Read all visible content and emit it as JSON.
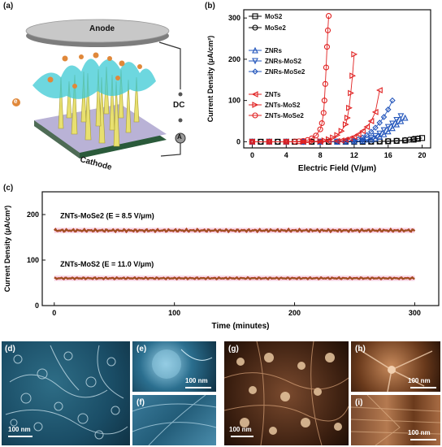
{
  "panel_a": {
    "label": "(a)",
    "anode": "Anode",
    "cathode": "Cathode",
    "dc": "DC",
    "ammeter": "A",
    "electron": "e"
  },
  "panel_b": {
    "label": "(b)",
    "chart_data": {
      "type": "scatter",
      "xlabel": "Electric Field (V/μm)",
      "ylabel": "Current Density (μA/cm²)",
      "xlim": [
        -1,
        21
      ],
      "ylim": [
        -15,
        320
      ],
      "xticks": [
        "0",
        "4",
        "8",
        "12",
        "16",
        "20"
      ],
      "yticks": [
        "0",
        "100",
        "200",
        "300"
      ],
      "legend_position": "top-left",
      "series": [
        {
          "name": "MoS2",
          "color": "#000000",
          "marker": "square",
          "x": [
            0,
            1,
            2,
            3,
            4,
            5,
            6,
            7,
            8,
            9,
            10,
            11,
            12,
            13,
            14,
            15,
            16,
            17,
            18,
            19,
            19.5,
            20
          ],
          "y": [
            0,
            0,
            0,
            0,
            0,
            0,
            0,
            0,
            0,
            0,
            0,
            0,
            0,
            0,
            0.2,
            0.5,
            1,
            2,
            3,
            5,
            7,
            9
          ]
        },
        {
          "name": "MoSe2",
          "color": "#000000",
          "marker": "circle",
          "x": [
            0,
            1,
            2,
            3,
            4,
            5,
            6,
            7,
            8,
            9,
            10,
            11,
            12,
            13,
            14,
            15,
            16,
            17,
            18,
            18.5,
            19,
            19.5
          ],
          "y": [
            0,
            0,
            0,
            0,
            0,
            0,
            0,
            0,
            0,
            0,
            0,
            0,
            0,
            0.2,
            0.5,
            1,
            1.5,
            2.5,
            4,
            5,
            7,
            8
          ]
        },
        {
          "name": "ZNRs",
          "color": "#2255bb",
          "marker": "triangle-up",
          "x": [
            0,
            2,
            4,
            6,
            8,
            10,
            11,
            12,
            13,
            14,
            14.5,
            15,
            15.5,
            16,
            16.5,
            17,
            17.5,
            18
          ],
          "y": [
            0,
            0,
            0,
            0,
            0,
            0,
            0.5,
            1,
            2,
            5,
            8,
            12,
            18,
            25,
            33,
            42,
            50,
            58
          ]
        },
        {
          "name": "ZNRs-MoS2",
          "color": "#2255bb",
          "marker": "triangle-down",
          "x": [
            0,
            2,
            4,
            6,
            8,
            10,
            11,
            12,
            13,
            13.5,
            14,
            14.5,
            15,
            15.5,
            16,
            16.5,
            17,
            17.5
          ],
          "y": [
            0,
            0,
            0,
            0,
            0,
            0,
            0.5,
            1,
            3,
            5,
            9,
            14,
            20,
            28,
            36,
            44,
            53,
            62
          ]
        },
        {
          "name": "ZNRs-MoSe2",
          "color": "#2255bb",
          "marker": "diamond",
          "x": [
            0,
            2,
            4,
            6,
            8,
            10,
            11,
            12,
            12.5,
            13,
            13.5,
            14,
            14.5,
            15,
            15.5,
            16,
            16.5
          ],
          "y": [
            0,
            0,
            0,
            0,
            0,
            0.5,
            1,
            3,
            6,
            10,
            16,
            24,
            34,
            46,
            60,
            78,
            100
          ]
        },
        {
          "name": "ZNTs",
          "color": "#e02020",
          "marker": "triangle-left",
          "x": [
            0,
            2,
            4,
            6,
            8,
            9,
            10,
            10.5,
            11,
            11.5,
            12,
            12.5,
            13,
            13.5,
            14,
            14.5,
            15
          ],
          "y": [
            0,
            0,
            0,
            0,
            0,
            0.5,
            1.5,
            3,
            5,
            8,
            12,
            18,
            26,
            36,
            50,
            72,
            125
          ]
        },
        {
          "name": "ZNTs-MoS2",
          "color": "#e02020",
          "marker": "triangle-right",
          "x": [
            0,
            2,
            4,
            6,
            7,
            8,
            8.5,
            9,
            9.5,
            10,
            10.5,
            11,
            11.2,
            11.4,
            11.6,
            11.8,
            12
          ],
          "y": [
            0,
            0,
            0,
            0,
            0.5,
            1.5,
            3,
            6,
            10,
            16,
            26,
            42,
            58,
            82,
            118,
            160,
            212
          ]
        },
        {
          "name": "ZNTs-MoSe2",
          "color": "#e02020",
          "marker": "circle",
          "x": [
            0,
            2,
            4,
            5,
            5.5,
            6,
            6.5,
            7,
            7.5,
            8,
            8.2,
            8.4,
            8.5,
            8.6,
            8.7,
            8.8,
            8.9,
            9
          ],
          "y": [
            0,
            0,
            0,
            0.5,
            1,
            2,
            4,
            8,
            15,
            30,
            45,
            70,
            100,
            140,
            180,
            230,
            270,
            305
          ]
        }
      ]
    }
  },
  "panel_c": {
    "label": "(c)",
    "chart_data": {
      "type": "line",
      "xlabel": "Time (minutes)",
      "ylabel": "Current Density (μA/cm²)",
      "xlim": [
        -10,
        320
      ],
      "ylim": [
        0,
        250
      ],
      "xticks": [
        "0",
        "100",
        "200",
        "300"
      ],
      "yticks": [
        "0",
        "100",
        "200"
      ],
      "annotations": [
        "ZNTs-MoSe2  (E = 8.5 V/μm)",
        "ZNTs-MoS2  (E = 11.0 V/μm)"
      ],
      "series": [
        {
          "name": "ZNTs-MoSe2",
          "x_range": [
            0,
            300
          ],
          "mean": 165,
          "noise": 3
        },
        {
          "name": "ZNTs-MoS2",
          "x_range": [
            0,
            300
          ],
          "mean": 60,
          "noise": 2
        }
      ]
    }
  },
  "micrographs": {
    "d": {
      "label": "(d)",
      "scale": "100 nm"
    },
    "e": {
      "label": "(e)",
      "scale": "100 nm"
    },
    "f": {
      "label": "(f)",
      "scale": ""
    },
    "g": {
      "label": "(g)",
      "scale": "100 nm"
    },
    "h": {
      "label": "(h)",
      "scale": "100 nm"
    },
    "i": {
      "label": "(i)",
      "scale": "100 nm"
    }
  }
}
